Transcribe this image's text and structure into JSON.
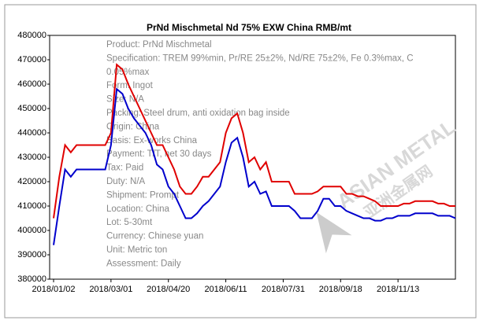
{
  "chart_data": {
    "type": "line",
    "title": "PrNd Mischmetal Nd 75% EXW China RMB/mt",
    "categories": [
      "2018/01/02",
      null,
      null,
      null,
      null,
      null,
      null,
      null,
      null,
      null,
      "2018/03/01",
      null,
      null,
      null,
      null,
      null,
      null,
      null,
      null,
      null,
      "2018/04/20",
      null,
      null,
      null,
      null,
      null,
      null,
      null,
      null,
      null,
      "2018/06/11",
      null,
      null,
      null,
      null,
      null,
      null,
      null,
      null,
      null,
      "2018/07/31",
      null,
      null,
      null,
      null,
      null,
      null,
      null,
      null,
      null,
      "2018/09/18",
      null,
      null,
      null,
      null,
      null,
      null,
      null,
      null,
      null,
      "2018/11/13",
      null,
      null,
      null,
      null,
      null,
      null,
      null,
      null,
      null,
      null
    ],
    "series": [
      {
        "color": "#e00000",
        "values": [
          405000,
          422000,
          435000,
          432000,
          435000,
          435000,
          435000,
          435000,
          435000,
          435000,
          440000,
          468000,
          466000,
          460000,
          455000,
          450000,
          445000,
          440000,
          435000,
          435000,
          430000,
          425000,
          418000,
          415000,
          415000,
          418000,
          422000,
          422000,
          425000,
          428000,
          440000,
          446000,
          448000,
          440000,
          428000,
          430000,
          425000,
          428000,
          420000,
          420000,
          420000,
          420000,
          415000,
          415000,
          415000,
          415000,
          416000,
          418000,
          418000,
          418000,
          418000,
          415000,
          415000,
          414000,
          414000,
          413000,
          412000,
          410000,
          410000,
          410000,
          410000,
          411000,
          411000,
          412000,
          412000,
          412000,
          412000,
          411000,
          411000,
          410000,
          410000
        ]
      },
      {
        "color": "#0000cc",
        "values": [
          394000,
          410000,
          425000,
          422000,
          425000,
          425000,
          425000,
          425000,
          425000,
          425000,
          435000,
          458000,
          456000,
          450000,
          446000,
          443000,
          440000,
          435000,
          427000,
          425000,
          418000,
          415000,
          410000,
          405000,
          405000,
          407000,
          410000,
          412000,
          415000,
          418000,
          428000,
          436000,
          438000,
          430000,
          418000,
          420000,
          415000,
          416000,
          410000,
          410000,
          410000,
          410000,
          408000,
          405000,
          405000,
          405000,
          408000,
          413000,
          413000,
          410000,
          410000,
          408000,
          407000,
          406000,
          405000,
          405000,
          404000,
          404000,
          405000,
          405000,
          406000,
          406000,
          406000,
          407000,
          407000,
          407000,
          407000,
          406000,
          406000,
          406000,
          405000
        ]
      }
    ],
    "ylim": [
      380000,
      480000
    ],
    "yticks": [
      380000,
      390000,
      400000,
      410000,
      420000,
      430000,
      440000,
      450000,
      460000,
      470000,
      480000
    ],
    "grid": false,
    "annotations": [
      "Product: PrNd Mischmetal",
      "Specification: TREM 99%min, Pr/RE 25±2%, Nd/RE 75±2%, Fe 0.3%max, C",
      "0.05%max",
      "Form: Ingot",
      "Size: N/A",
      "Packing: Steel drum, anti oxidation bag inside",
      "Origin: China",
      "Basis: Ex-works China",
      "Payment: T/T, net 30 days",
      "Tax: Paid",
      "Duty: N/A",
      "Shipment: Prompt",
      "Location: China",
      "Lot: 5-30mt",
      "Currency: Chinese yuan",
      "Unit: Metric ton",
      "Assessment: Daily"
    ],
    "watermark": [
      "ASIAN METAL",
      "亚洲金属网"
    ]
  }
}
